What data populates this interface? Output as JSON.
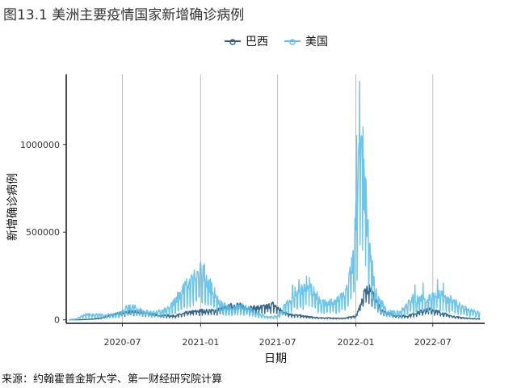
{
  "figure": {
    "title": "图13.1 美洲主要疫情国家新增确诊病例",
    "source": "来源：约翰霍普金斯大学、第一财经研究院计算"
  },
  "chart_data": {
    "type": "line",
    "xlabel": "日期",
    "ylabel": "新增确诊病例",
    "x_ticks": [
      "2020-07",
      "2021-01",
      "2021-07",
      "2022-01",
      "2022-07"
    ],
    "y_ticks": [
      0,
      500000,
      1000000
    ],
    "y_tick_labels": [
      "0",
      "500000",
      "1000000"
    ],
    "xlim": [
      "2020-02-20",
      "2022-10-31"
    ],
    "ylim": [
      -20000,
      1400000
    ],
    "grid": "vertical only",
    "legend_position": "top",
    "series": [
      {
        "name": "巴西",
        "color": "#2b5f86",
        "points": [
          [
            "2020-02-26",
            0
          ],
          [
            "2020-03-20",
            500
          ],
          [
            "2020-04-15",
            3000
          ],
          [
            "2020-05-10",
            9000
          ],
          [
            "2020-06-01",
            25000
          ],
          [
            "2020-06-20",
            35000
          ],
          [
            "2020-07-01",
            38000
          ],
          [
            "2020-07-20",
            45000
          ],
          [
            "2020-08-10",
            42000
          ],
          [
            "2020-09-01",
            35000
          ],
          [
            "2020-10-01",
            25000
          ],
          [
            "2020-11-01",
            22000
          ],
          [
            "2020-12-01",
            40000
          ],
          [
            "2021-01-01",
            50000
          ],
          [
            "2021-02-01",
            50000
          ],
          [
            "2021-03-01",
            65000
          ],
          [
            "2021-03-25",
            85000
          ],
          [
            "2021-04-15",
            70000
          ],
          [
            "2021-05-01",
            65000
          ],
          [
            "2021-06-01",
            70000
          ],
          [
            "2021-06-20",
            85000
          ],
          [
            "2021-07-10",
            50000
          ],
          [
            "2021-08-01",
            30000
          ],
          [
            "2021-09-01",
            20000
          ],
          [
            "2021-10-01",
            12000
          ],
          [
            "2021-11-01",
            10000
          ],
          [
            "2021-12-01",
            8000
          ],
          [
            "2022-01-01",
            20000
          ],
          [
            "2022-01-15",
            110000
          ],
          [
            "2022-02-01",
            200000
          ],
          [
            "2022-02-10",
            140000
          ],
          [
            "2022-03-01",
            50000
          ],
          [
            "2022-04-01",
            25000
          ],
          [
            "2022-05-01",
            20000
          ],
          [
            "2022-06-01",
            45000
          ],
          [
            "2022-06-25",
            60000
          ],
          [
            "2022-07-20",
            40000
          ],
          [
            "2022-08-15",
            20000
          ],
          [
            "2022-09-15",
            10000
          ],
          [
            "2022-10-20",
            5000
          ]
        ]
      },
      {
        "name": "美国",
        "color": "#5cbfe8",
        "points": [
          [
            "2020-02-26",
            0
          ],
          [
            "2020-03-15",
            5000
          ],
          [
            "2020-04-01",
            25000
          ],
          [
            "2020-04-15",
            30000
          ],
          [
            "2020-05-15",
            25000
          ],
          [
            "2020-06-15",
            28000
          ],
          [
            "2020-07-10",
            60000
          ],
          [
            "2020-07-25",
            68000
          ],
          [
            "2020-08-20",
            45000
          ],
          [
            "2020-09-10",
            38000
          ],
          [
            "2020-10-01",
            45000
          ],
          [
            "2020-10-20",
            60000
          ],
          [
            "2020-11-10",
            130000
          ],
          [
            "2020-12-01",
            180000
          ],
          [
            "2020-12-20",
            230000
          ],
          [
            "2021-01-08",
            260000
          ],
          [
            "2021-01-25",
            170000
          ],
          [
            "2021-02-15",
            90000
          ],
          [
            "2021-03-10",
            60000
          ],
          [
            "2021-04-10",
            70000
          ],
          [
            "2021-05-10",
            40000
          ],
          [
            "2021-06-10",
            15000
          ],
          [
            "2021-07-01",
            20000
          ],
          [
            "2021-07-25",
            90000
          ],
          [
            "2021-08-15",
            150000
          ],
          [
            "2021-09-01",
            170000
          ],
          [
            "2021-09-20",
            150000
          ],
          [
            "2021-10-15",
            90000
          ],
          [
            "2021-11-15",
            90000
          ],
          [
            "2021-12-10",
            150000
          ],
          [
            "2021-12-25",
            300000
          ],
          [
            "2022-01-05",
            650000
          ],
          [
            "2022-01-10",
            900000
          ],
          [
            "2022-01-15",
            800000
          ],
          [
            "2022-02-01",
            400000
          ],
          [
            "2022-02-15",
            150000
          ],
          [
            "2022-03-15",
            40000
          ],
          [
            "2022-04-15",
            40000
          ],
          [
            "2022-05-15",
            110000
          ],
          [
            "2022-06-15",
            110000
          ],
          [
            "2022-07-15",
            130000
          ],
          [
            "2022-08-15",
            100000
          ],
          [
            "2022-09-15",
            60000
          ],
          [
            "2022-10-20",
            35000
          ]
        ],
        "spikes": [
          [
            "2020-11-28",
            200000
          ],
          [
            "2020-12-12",
            250000
          ],
          [
            "2021-01-02",
            300000
          ],
          [
            "2021-01-08",
            310000
          ],
          [
            "2021-08-05",
            200000
          ],
          [
            "2021-08-20",
            230000
          ],
          [
            "2021-09-07",
            250000
          ],
          [
            "2021-09-14",
            240000
          ],
          [
            "2022-01-03",
            1050000
          ],
          [
            "2022-01-10",
            1360000
          ],
          [
            "2022-01-18",
            1100000
          ],
          [
            "2022-01-25",
            800000
          ],
          [
            "2022-05-20",
            200000
          ],
          [
            "2022-06-08",
            210000
          ],
          [
            "2022-07-12",
            230000
          ],
          [
            "2022-07-26",
            210000
          ]
        ]
      }
    ]
  }
}
